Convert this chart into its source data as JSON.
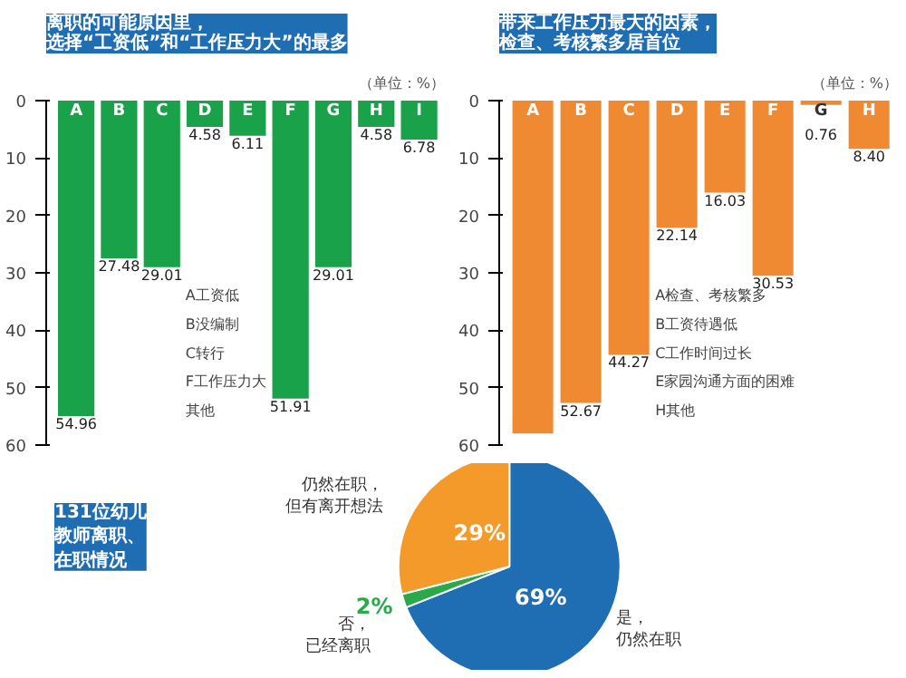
{
  "chart_data": [
    {
      "type": "bar",
      "title": "离职的可能原因里，选择“工资低”和“工作压力大”的最多",
      "subtitle": "（单位：%）",
      "categories": [
        "A",
        "B",
        "C",
        "D",
        "E",
        "F",
        "G",
        "H",
        "I"
      ],
      "series": [
        {
          "color": "#1aa24a",
          "values": [
            54.96,
            27.48,
            29.01,
            4.58,
            6.11,
            51.91,
            29.01,
            4.58,
            6.78
          ]
        }
      ],
      "data_labels": true,
      "ylim": [
        60,
        0
      ],
      "yticks": [
        0,
        10,
        20,
        30,
        40,
        50,
        60
      ],
      "grid": false,
      "annotations": [
        "A工资低",
        "B没编制",
        "C转行",
        "F工作压力大",
        "其他"
      ]
    },
    {
      "type": "bar",
      "title": "带来工作压力最大的因素，检查、考核繁多居首位",
      "subtitle": "（单位：%）",
      "categories": [
        "A",
        "B",
        "C",
        "D",
        "E",
        "F",
        "G",
        "H"
      ],
      "series": [
        {
          "color": "#f08a32",
          "values": [
            58,
            52.67,
            44.27,
            22.14,
            16.03,
            30.53,
            0.76,
            8.4
          ]
        }
      ],
      "value_labels": [
        null,
        "52.67",
        "44.27",
        "22.14",
        "16.03",
        "30.53",
        "0.76",
        "8.40"
      ],
      "ylim": [
        60,
        0
      ],
      "yticks": [
        0,
        10,
        20,
        30,
        40,
        50,
        60
      ],
      "grid": false,
      "annotations": [
        "A检查、考核繁多",
        "B工资待遇低",
        "C工作时间过长",
        "E家园沟通方面的困难",
        "H其他"
      ]
    },
    {
      "type": "pie",
      "title": "131位幼儿教师离职、在职情况",
      "categories": [
        "是，仍然在职",
        "否，已经离职",
        "仍然在职，但有离开想法"
      ],
      "values": [
        69,
        2,
        29
      ],
      "colors": [
        "#1f6db3",
        "#2aa84a",
        "#f39a2a"
      ],
      "value_labels": [
        "69%",
        "2%",
        "29%"
      ]
    }
  ]
}
